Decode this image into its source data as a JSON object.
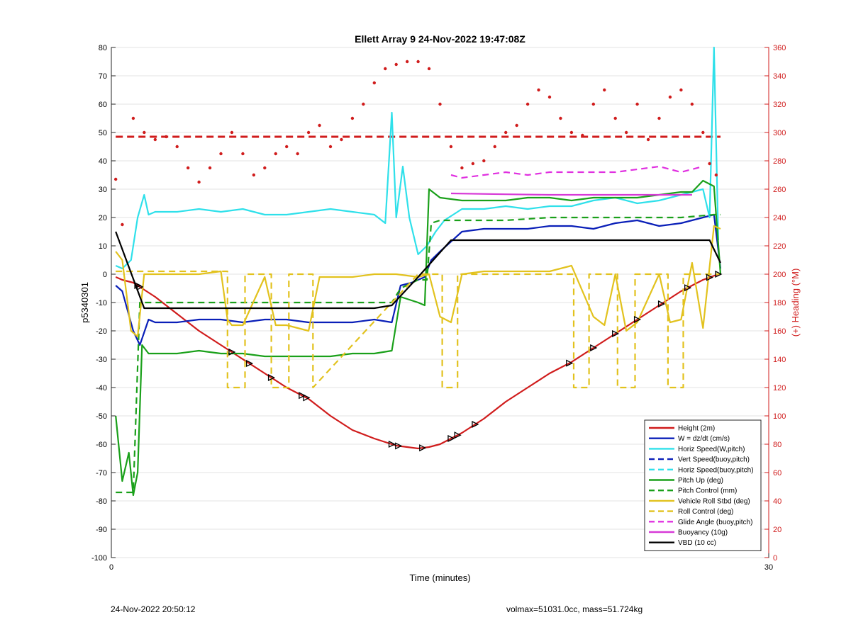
{
  "chart_data": {
    "type": "line",
    "title": "Ellett Array 9 24-Nov-2022 19:47:08Z",
    "xlabel": "Time (minutes)",
    "ylabel": "p5340301",
    "y2label": "(+) Heading (°M)",
    "xlim": [
      0,
      30
    ],
    "ylim": [
      -100,
      80
    ],
    "y2lim": [
      0,
      360
    ],
    "xticks": [
      "0",
      "30"
    ],
    "yticks": [
      "80",
      "70",
      "60",
      "50",
      "40",
      "30",
      "20",
      "10",
      "0",
      "-10",
      "-20",
      "-30",
      "-40",
      "-50",
      "-60",
      "-70",
      "-80",
      "-90",
      "-100"
    ],
    "y2ticks": [
      "360",
      "340",
      "320",
      "300",
      "280",
      "260",
      "240",
      "220",
      "200",
      "180",
      "160",
      "140",
      "120",
      "100",
      "80",
      "60",
      "40",
      "20",
      "0"
    ],
    "grid": true,
    "legend_position": "bottom-right",
    "colors": {
      "height": "#d01c1c",
      "w": "#0a1fb8",
      "horiz": "#2fe0ea",
      "pitch": "#1aa01a",
      "roll": "#e2c21e",
      "glide": "#e030e0",
      "buoy": "#d73ad7",
      "vbd": "#000000",
      "heading": "#d01c1c"
    },
    "legend": [
      {
        "label": "Height (2m)",
        "color": "#d01c1c",
        "dash": false
      },
      {
        "label": "W = dz/dt (cm/s)",
        "color": "#0a1fb8",
        "dash": false
      },
      {
        "label": "Horiz Speed(W,pitch)",
        "color": "#2fe0ea",
        "dash": false
      },
      {
        "label": "Vert Speed(buoy,pitch)",
        "color": "#0a1fb8",
        "dash": true
      },
      {
        "label": "Horiz Speed(buoy,pitch)",
        "color": "#2fe0ea",
        "dash": true
      },
      {
        "label": "Pitch Up (deg)",
        "color": "#1aa01a",
        "dash": false
      },
      {
        "label": "Pitch Control (mm)",
        "color": "#1aa01a",
        "dash": true
      },
      {
        "label": "Vehicle Roll Stbd (deg)",
        "color": "#e2c21e",
        "dash": false
      },
      {
        "label": "Roll Control (deg)",
        "color": "#e2c21e",
        "dash": true
      },
      {
        "label": "Glide Angle (buoy,pitch)",
        "color": "#e030e0",
        "dash": true
      },
      {
        "label": "Buoyancy (10g)",
        "color": "#d73ad7",
        "dash": false
      },
      {
        "label": "VBD (10 cc)",
        "color": "#000000",
        "dash": false
      }
    ],
    "series": [
      {
        "name": "Height (2m)",
        "x": [
          0.2,
          0.5,
          1.0,
          1.2,
          2,
          3,
          4,
          5,
          6,
          7,
          8,
          9,
          10,
          11,
          12,
          13,
          13.5,
          14,
          14.5,
          15,
          16,
          17,
          18,
          19,
          20,
          21,
          22,
          23,
          24,
          25,
          26,
          27,
          27.7
        ],
        "y": [
          -1,
          -2,
          -3,
          -4,
          -8,
          -14,
          -20,
          -25,
          -30,
          -35,
          -40,
          -44,
          -50,
          -55,
          -58,
          -60.5,
          -61,
          -61.5,
          -61,
          -60,
          -56,
          -51,
          -45,
          -40,
          -35,
          -31,
          -26,
          -21,
          -16,
          -11,
          -6,
          -2,
          0
        ]
      },
      {
        "name": "W = dz/dt (cm/s)",
        "x": [
          0.2,
          0.5,
          1.0,
          1.3,
          1.7,
          2,
          3,
          4,
          5,
          6,
          7,
          8,
          9,
          10,
          11,
          12,
          12.8,
          13.2,
          13.7,
          14.3,
          14.6,
          15,
          16,
          17,
          18,
          19,
          20,
          21,
          22,
          23,
          24,
          25,
          26,
          27,
          27.5,
          27.8
        ],
        "y": [
          -4,
          -6,
          -20,
          -25,
          -16,
          -17,
          -17,
          -16,
          -16,
          -17,
          -16,
          -16,
          -17,
          -17,
          -17,
          -16,
          -17,
          -4,
          -3,
          -1,
          5,
          8,
          15,
          16,
          16,
          16,
          17,
          17,
          16,
          18,
          19,
          17,
          18,
          20,
          21,
          2
        ]
      },
      {
        "name": "Horiz Speed(W,pitch)",
        "x": [
          0.2,
          0.5,
          0.9,
          1.2,
          1.5,
          1.7,
          2,
          3,
          4,
          5,
          6,
          7,
          8,
          9,
          10,
          11,
          12,
          12.5,
          12.8,
          13.0,
          13.3,
          13.6,
          14.0,
          14.4,
          14.8,
          15.2,
          16,
          17,
          18,
          19,
          20,
          21,
          22,
          23,
          24,
          25,
          26,
          27,
          27.3,
          27.5,
          27.7
        ],
        "y": [
          3,
          2,
          5,
          20,
          28,
          21,
          22,
          22,
          23,
          22,
          23,
          21,
          21,
          22,
          23,
          22,
          21,
          18,
          57,
          20,
          38,
          20,
          7,
          10,
          15,
          19,
          23,
          23,
          24,
          23,
          24,
          24,
          26,
          27,
          25,
          26,
          28,
          30,
          20,
          80,
          12
        ]
      },
      {
        "name": "Pitch Up (deg)",
        "x": [
          0.2,
          0.5,
          0.8,
          1.0,
          1.2,
          1.4,
          1.7,
          2,
          3,
          4,
          5,
          6,
          7,
          8,
          9,
          10,
          11,
          12,
          12.8,
          13.2,
          14,
          14.3,
          14.5,
          15,
          16,
          17,
          18,
          19,
          20,
          21,
          22,
          23,
          24,
          25,
          26,
          26.5,
          27,
          27.5,
          27.8
        ],
        "y": [
          -50,
          -73,
          -63,
          -78,
          -70,
          -25,
          -28,
          -28,
          -28,
          -27,
          -28,
          -28,
          -29,
          -29,
          -29,
          -29,
          -28,
          -28,
          -27,
          -8,
          -10,
          -11,
          30,
          27,
          26,
          26,
          26,
          27,
          27,
          26,
          27,
          27,
          27,
          28,
          29,
          29,
          33,
          31,
          0
        ]
      },
      {
        "name": "Pitch Control (mm)",
        "x": [
          0.2,
          1.0,
          1.3,
          1.6,
          2,
          4,
          6,
          8,
          10,
          12,
          12.8,
          13.2,
          14,
          14.4,
          14.6,
          15,
          16,
          18,
          20,
          22,
          24,
          26,
          27.5,
          27.8
        ],
        "y": [
          -77,
          -77,
          -10,
          -10,
          -10,
          -10,
          -10,
          -10,
          -10,
          -10,
          -10,
          -5,
          -2,
          -2,
          18,
          19,
          19,
          19,
          20,
          20,
          20,
          20,
          21,
          21
        ],
        "dash": true
      },
      {
        "name": "Vehicle Roll Stbd (deg)",
        "x": [
          0.2,
          0.5,
          0.9,
          1.2,
          1.5,
          2,
          3,
          4,
          5,
          5.3,
          5.5,
          6,
          7,
          7.5,
          8,
          9,
          9.5,
          10,
          11,
          12,
          13,
          14,
          14.5,
          15,
          15.5,
          16,
          17,
          18,
          19,
          20,
          21,
          22,
          22.5,
          23,
          23.5,
          24,
          25,
          25.5,
          26,
          26.5,
          27,
          27.5,
          27.8
        ],
        "y": [
          8,
          5,
          -20,
          -22,
          0,
          0,
          0,
          0,
          1,
          -16,
          -18,
          -18,
          -1,
          -18,
          -18,
          -20,
          -1,
          -1,
          -1,
          0,
          0,
          -1,
          0,
          -15,
          -17,
          0,
          1,
          1,
          1,
          1,
          3,
          -15,
          -18,
          0,
          -20,
          -17,
          0,
          -17,
          -16,
          4,
          -19,
          17,
          16
        ]
      },
      {
        "name": "Roll Control (deg)",
        "x": [
          0.2,
          2,
          5,
          5.3,
          5.3,
          6,
          6.1,
          6.1,
          7.2,
          7.3,
          7.3,
          8,
          8.1,
          8.1,
          9,
          9.2,
          9.2,
          14,
          15.1,
          15.1,
          15.7,
          15.8,
          15.8,
          21,
          21.1,
          21.1,
          21.7,
          21.8,
          21.8,
          23,
          23.1,
          23.1,
          23.8,
          23.9,
          23.9,
          25.3,
          25.4,
          25.4,
          26,
          26.1,
          26.1,
          27.8
        ],
        "y": [
          1,
          1,
          1,
          1,
          -40,
          -40,
          -40,
          0,
          0,
          0,
          -40,
          -40,
          -40,
          0,
          0,
          0,
          -40,
          0,
          0,
          -40,
          -40,
          -40,
          0,
          0,
          0,
          -40,
          -40,
          -40,
          0,
          0,
          0,
          -40,
          -40,
          -40,
          0,
          0,
          0,
          -40,
          -40,
          -40,
          0,
          0
        ],
        "dash": true
      },
      {
        "name": "Glide Angle (buoy,pitch)",
        "x": [
          15.5,
          16,
          17,
          18,
          19,
          20,
          21,
          22,
          23,
          24,
          25,
          26,
          27
        ],
        "y": [
          35,
          34,
          35,
          36,
          35,
          36,
          36,
          36,
          36,
          37,
          38,
          36,
          38
        ],
        "dash": true
      },
      {
        "name": "Buoyancy (10g)",
        "x": [
          15.5,
          18,
          20,
          22,
          24,
          26.5
        ],
        "y": [
          28.5,
          28.2,
          28,
          28,
          28,
          28
        ]
      },
      {
        "name": "VBD (10 cc)",
        "x": [
          0.2,
          1.5,
          2,
          4,
          6,
          8,
          10,
          12,
          12.8,
          14,
          15.5,
          16.5,
          18,
          20,
          22,
          24,
          26,
          27.3,
          27.8
        ],
        "y": [
          15,
          -12,
          -12,
          -12,
          -12,
          -12,
          -12,
          -12,
          -11,
          -1,
          12,
          12,
          12,
          12,
          12,
          12,
          12,
          12,
          4
        ]
      },
      {
        "name": "(+) Heading (°M)",
        "axis": "right",
        "x": [
          0.2,
          0.5,
          1.0,
          1.5,
          2,
          2.5,
          3,
          3.5,
          4,
          4.5,
          5,
          5.5,
          6,
          6.5,
          7,
          7.5,
          8,
          8.5,
          9,
          9.5,
          10,
          10.5,
          11,
          11.5,
          12,
          12.5,
          13,
          13.5,
          14,
          14.5,
          15,
          15.5,
          16,
          16.5,
          17,
          17.5,
          18,
          18.5,
          19,
          19.5,
          20,
          20.5,
          21,
          21.5,
          22,
          22.5,
          23,
          23.5,
          24,
          24.5,
          25,
          25.5,
          26,
          26.5,
          27,
          27.3,
          27.6
        ],
        "y": [
          267,
          235,
          310,
          300,
          295,
          297,
          290,
          275,
          265,
          275,
          285,
          300,
          285,
          270,
          275,
          285,
          290,
          285,
          300,
          305,
          290,
          295,
          310,
          320,
          335,
          345,
          348,
          350,
          350,
          345,
          320,
          290,
          275,
          278,
          280,
          290,
          300,
          305,
          320,
          330,
          325,
          310,
          300,
          298,
          320,
          330,
          310,
          300,
          320,
          295,
          310,
          325,
          330,
          320,
          300,
          278,
          270
        ]
      }
    ],
    "markers_heading_ref": 297,
    "markers_x": [
      1.2,
      1.3,
      5.5,
      6.3,
      7.3,
      8.7,
      8.9,
      12.8,
      13.1,
      14.2,
      15.5,
      15.8,
      16.6,
      20.9,
      22.0,
      23.0,
      24.0,
      25.1,
      26.3,
      27.3,
      27.7
    ]
  },
  "footer": {
    "left": "24-Nov-2022 20:50:12",
    "right": "volmax=51031.0cc, mass=51.724kg"
  }
}
